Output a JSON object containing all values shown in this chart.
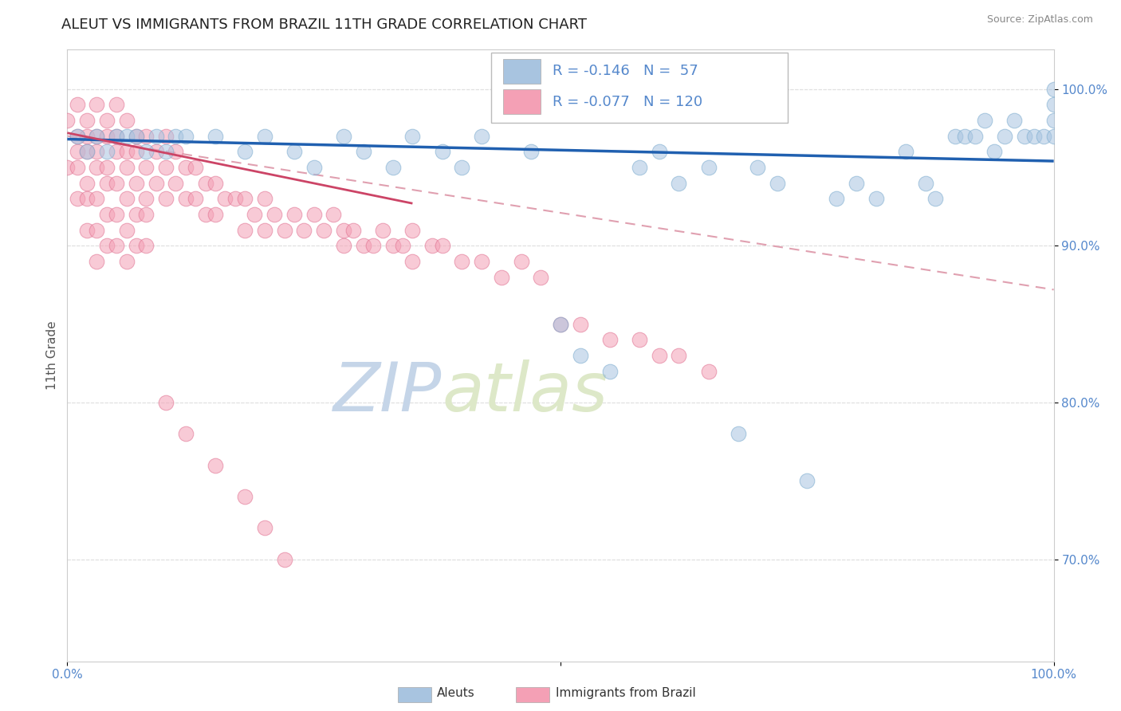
{
  "title": "ALEUT VS IMMIGRANTS FROM BRAZIL 11TH GRADE CORRELATION CHART",
  "source": "Source: ZipAtlas.com",
  "ylabel": "11th Grade",
  "xlim": [
    0.0,
    1.0
  ],
  "ylim": [
    0.635,
    1.025
  ],
  "yticks": [
    0.7,
    0.8,
    0.9,
    1.0
  ],
  "ytick_labels": [
    "70.0%",
    "80.0%",
    "90.0%",
    "100.0%"
  ],
  "xtick_vals": [
    0.0,
    0.5,
    1.0
  ],
  "xtick_labels": [
    "0.0%",
    "",
    "100.0%"
  ],
  "aleut_color": "#a8c4e0",
  "aleut_edge_color": "#7aabce",
  "brazil_color": "#f4a0b5",
  "brazil_edge_color": "#e07090",
  "trend_aleut_color": "#2060b0",
  "trend_brazil_color": "#cc4466",
  "trend_dashed_color": "#e0a0b0",
  "background_color": "#ffffff",
  "watermark_color": "#d0dff0",
  "R_aleut": -0.146,
  "N_aleut": 57,
  "R_brazil": -0.077,
  "N_brazil": 120,
  "legend_box_color": "#f5f5f5",
  "legend_border_color": "#cccccc",
  "tick_color": "#5588cc",
  "title_color": "#222222",
  "source_color": "#888888",
  "ylabel_color": "#555555",
  "bottom_legend_text_color": "#333333",
  "grid_color": "#e0e0e0",
  "grid_style": "--"
}
